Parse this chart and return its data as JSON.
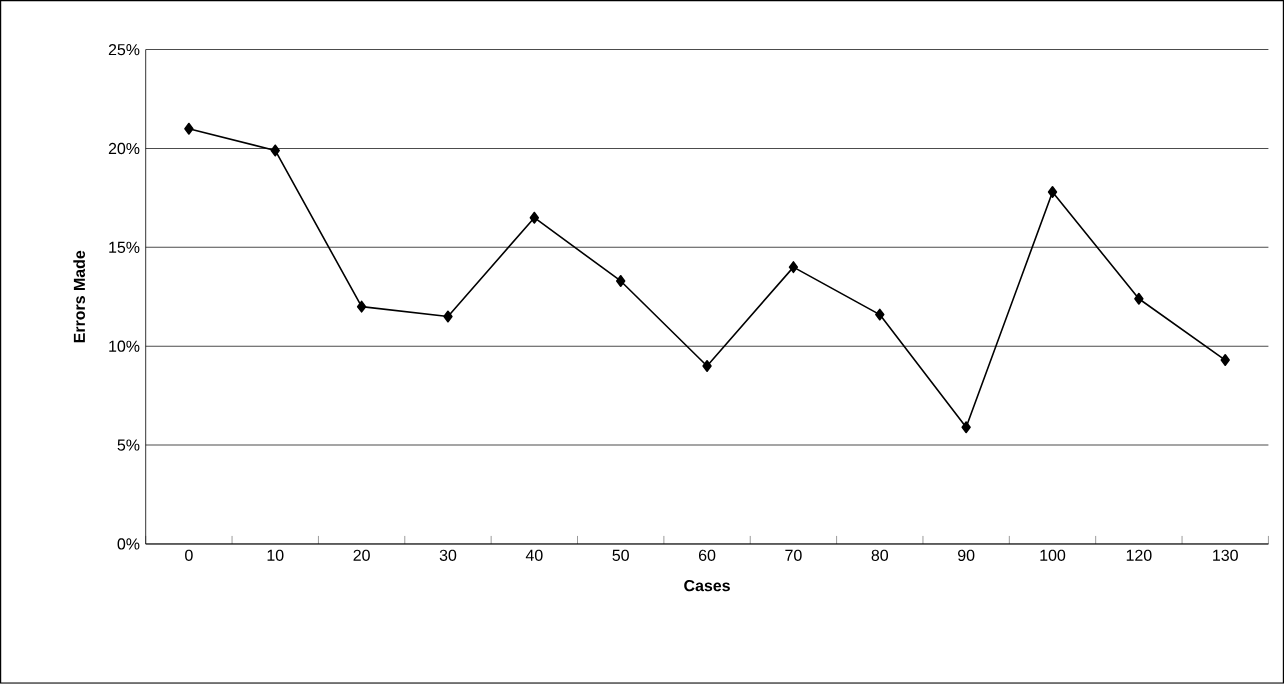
{
  "chart_data": {
    "type": "line",
    "xlabel": "Cases",
    "ylabel": "Errors Made",
    "categories": [
      "0",
      "10",
      "20",
      "30",
      "40",
      "50",
      "60",
      "70",
      "80",
      "90",
      "100",
      "120",
      "130"
    ],
    "values": [
      21.0,
      19.9,
      12.0,
      11.5,
      16.5,
      13.3,
      9.0,
      14.0,
      11.6,
      5.9,
      17.8,
      12.4,
      9.3
    ],
    "color": "#000000",
    "marker": "diamond",
    "line_style": "solid",
    "grid": "y",
    "ylim": [
      0,
      25
    ],
    "yticks": [
      {
        "value": 0,
        "label": "0%"
      },
      {
        "value": 5,
        "label": "5%"
      },
      {
        "value": 10,
        "label": "10%"
      },
      {
        "value": 15,
        "label": "15%"
      },
      {
        "value": 20,
        "label": "20%"
      },
      {
        "value": 25,
        "label": "25%"
      }
    ]
  }
}
